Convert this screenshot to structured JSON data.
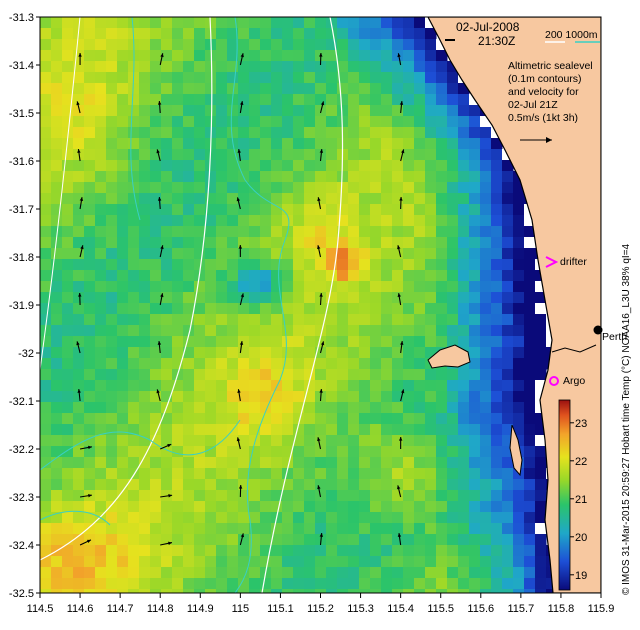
{
  "map": {
    "lon_ticks": [
      "114.5",
      "114.6",
      "114.7",
      "114.8",
      "114.9",
      "115",
      "115.1",
      "115.2",
      "115.3",
      "115.4",
      "115.5",
      "115.6",
      "115.7",
      "115.8",
      "115.9"
    ],
    "lat_ticks": [
      "-31.3",
      "-31.4",
      "-31.5",
      "-31.6",
      "-31.7",
      "-31.8",
      "-31.9",
      "-32",
      "-32.1",
      "-32.2",
      "-32.3",
      "-32.4",
      "-32.5"
    ],
    "lon_range": [
      114.5,
      115.9
    ],
    "lat_range": [
      -32.5,
      -31.3
    ],
    "date": "02-Jul-2008",
    "time": "21:30Z",
    "depth_legend": "200  1000m",
    "sealevel_note": [
      "Altimetric sealevel",
      "(0.1m contours)",
      "and velocity for",
      "02-Jul 21Z",
      "0.5m/s (1kt 3h)"
    ],
    "drifter_label": "drifter",
    "argo_label": "Argo",
    "city_label": "Perth",
    "colorbar_ticks": [
      "23",
      "22",
      "21",
      "20",
      "19"
    ],
    "colorbar_range": [
      18.6,
      23.6
    ],
    "vertical_label": "© IMOS 31-Mar-2015 20:59:27 Hobart time   Temp (°C) NOAA16_L3U 38% qI=4",
    "colors": {
      "land": "#f7c8a0",
      "bathy200": "#ffffff",
      "bathy1000": "#39d0c4",
      "drifter": "#ff00ff",
      "argo": "#ff00ff"
    }
  }
}
